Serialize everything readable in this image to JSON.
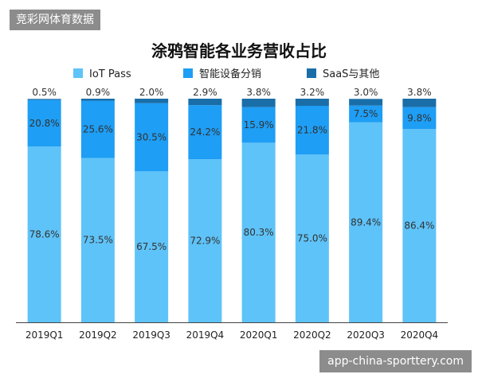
{
  "watermark_top": "竞彩网体育数据",
  "watermark_bottom": "app-china-sporttery.com",
  "colors": {
    "iot_pass": "#5ec3f8",
    "smart_device": "#1e9ef5",
    "saas": "#1a6ea8",
    "axis": "#444444"
  },
  "chart_data": {
    "type": "bar",
    "stacked": true,
    "title": "涂鸦智能各业务营收占比",
    "xlabel": "",
    "ylabel": "",
    "ylim": [
      0,
      100
    ],
    "grid": false,
    "legend_position": "top",
    "categories": [
      "2019Q1",
      "2019Q2",
      "2019Q3",
      "2019Q4",
      "2020Q1",
      "2020Q2",
      "2020Q3",
      "2020Q4"
    ],
    "series": [
      {
        "name": "IoT Pass",
        "values": [
          78.6,
          73.5,
          67.5,
          72.9,
          80.3,
          75.0,
          89.4,
          86.4
        ],
        "labels": [
          "78.6%",
          "73.5%",
          "67.5%",
          "72.9%",
          "80.3%",
          "75.0%",
          "89.4%",
          "86.4%"
        ]
      },
      {
        "name": "智能设备分销",
        "values": [
          20.8,
          25.6,
          30.5,
          24.2,
          15.9,
          21.8,
          7.5,
          9.8
        ],
        "labels": [
          "20.8%",
          "25.6%",
          "30.5%",
          "24.2%",
          "15.9%",
          "21.8%",
          "7.5%",
          "9.8%"
        ]
      },
      {
        "name": "SaaS与其他",
        "values": [
          0.5,
          0.9,
          2.0,
          2.9,
          3.8,
          3.2,
          3.0,
          3.8
        ],
        "labels": [
          "0.5%",
          "0.9%",
          "2.0%",
          "2.9%",
          "3.8%",
          "3.2%",
          "3.0%",
          "3.8%"
        ]
      }
    ]
  }
}
